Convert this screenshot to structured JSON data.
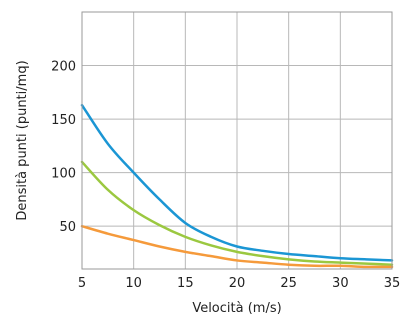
{
  "chart_data": {
    "type": "line",
    "xlabel": "Velocità (m/s)",
    "ylabel": "Densità punti (punti/mq)",
    "xlim": [
      5,
      35
    ],
    "ylim": [
      10,
      250
    ],
    "xticks": [
      5,
      10,
      15,
      20,
      25,
      30,
      35
    ],
    "yticks": [
      50,
      100,
      150,
      200
    ],
    "grid": true,
    "legend": "none",
    "x": [
      5,
      7.5,
      10,
      12.5,
      15,
      17.5,
      20,
      22.5,
      25,
      27.5,
      30,
      32.5,
      35
    ],
    "series": [
      {
        "color": "#1b96d4",
        "values": [
          163,
          127,
          100,
          75,
          53,
          40,
          31,
          27,
          24,
          22,
          20,
          19,
          18
        ]
      },
      {
        "color": "#9bc840",
        "values": [
          110,
          84,
          65,
          51,
          40,
          32,
          26,
          22,
          19,
          17,
          16,
          15,
          14
        ]
      },
      {
        "color": "#f59a3b",
        "values": [
          50,
          43,
          37,
          31,
          26,
          22,
          18,
          16,
          14,
          13,
          13,
          12,
          12
        ]
      }
    ]
  }
}
